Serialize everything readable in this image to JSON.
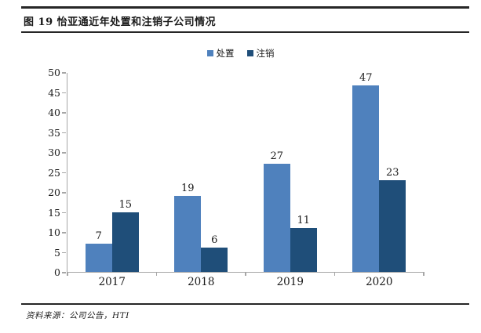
{
  "document": {
    "title": "图 19 怡亚通近年处置和注销子公司情况",
    "source_text": "资料来源：公司公告，HTI"
  },
  "chart_data": {
    "type": "bar",
    "title": "图 19 怡亚通近年处置和注销子公司情况",
    "categories": [
      "2017",
      "2018",
      "2019",
      "2020"
    ],
    "series": [
      {
        "name": "处置",
        "color": "#4F81BD",
        "values": [
          7,
          19,
          27,
          47
        ]
      },
      {
        "name": "注销",
        "color": "#1F4E79",
        "values": [
          15,
          6,
          11,
          23
        ]
      }
    ],
    "xlabel": "",
    "ylabel": "",
    "ylim": [
      0,
      50
    ],
    "yticks": [
      0,
      5,
      10,
      15,
      20,
      25,
      30,
      35,
      40,
      45,
      50
    ],
    "grid": false,
    "legend_position": "top-center",
    "bar_value_labels": true,
    "axis_color": "#a6a6a6",
    "text_color": "#1a1a1a"
  }
}
